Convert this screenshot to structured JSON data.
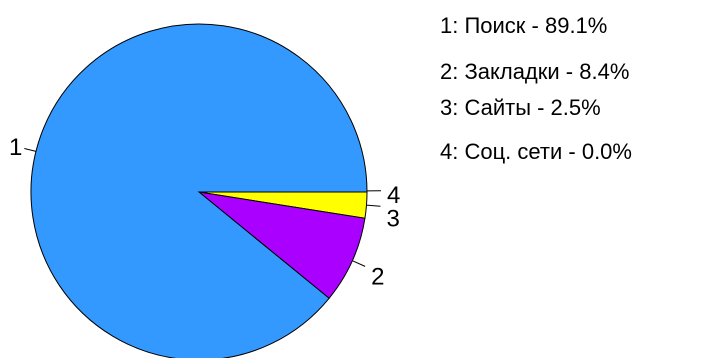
{
  "chart_data": {
    "type": "pie",
    "start_angle_deg": 0,
    "direction": "clockwise",
    "slices": [
      {
        "id": "1",
        "label": "Поиск",
        "value": 89.1,
        "color": "#3399ff"
      },
      {
        "id": "2",
        "label": "Закладки",
        "value": 8.4,
        "color": "#aa00ff"
      },
      {
        "id": "3",
        "label": "Сайты",
        "value": 2.5,
        "color": "#ffff00"
      },
      {
        "id": "4",
        "label": "Соц. сети",
        "value": 0.0,
        "color": "#00cc00"
      }
    ],
    "legend": {
      "position": "top-right",
      "entries": [
        "1: Поиск - 89.1%",
        "2: Закладки - 8.4%",
        "3: Сайты - 2.5%",
        "4: Соц. сети - 0.0%"
      ]
    },
    "outline_color": "#000000"
  }
}
